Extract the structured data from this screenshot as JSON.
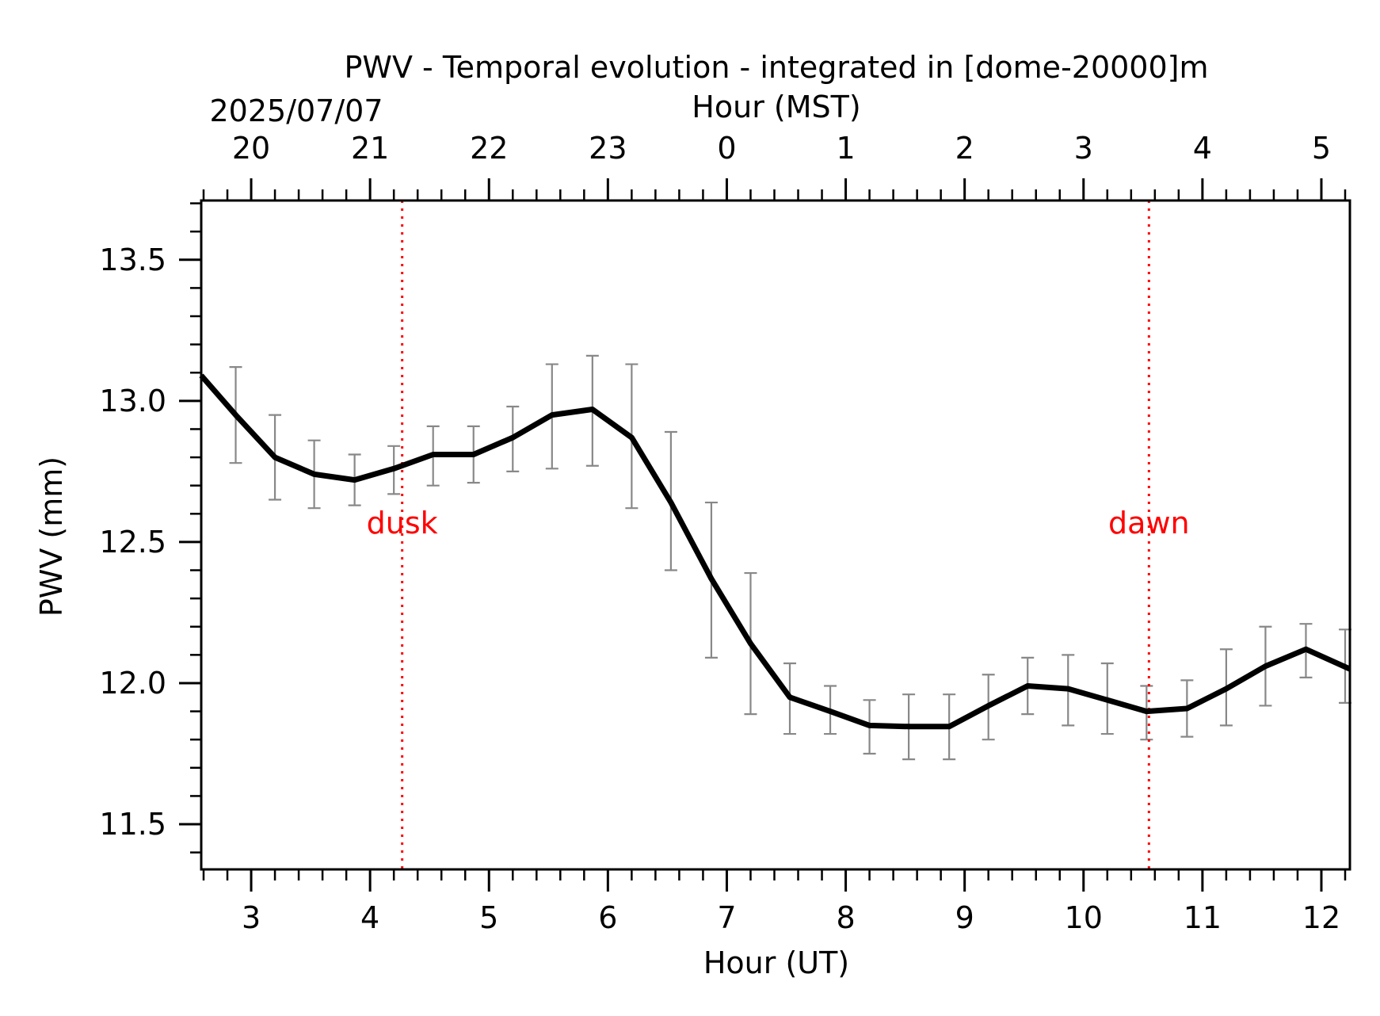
{
  "chart_data": {
    "type": "line",
    "title": "PWV - Temporal evolution - integrated in [dome-20000]m",
    "date_label": "2025/07/07",
    "xlabel": "Hour (UT)",
    "x2label": "Hour (MST)",
    "ylabel": "PWV (mm)",
    "xlim": [
      2.58,
      12.24
    ],
    "ylim": [
      11.34,
      13.71
    ],
    "xticks": [
      3,
      4,
      5,
      6,
      7,
      8,
      9,
      10,
      11,
      12
    ],
    "xtick_labels": [
      "3",
      "4",
      "5",
      "6",
      "7",
      "8",
      "9",
      "10",
      "11",
      "12"
    ],
    "x2ticks": [
      3,
      4,
      5,
      6,
      7,
      8,
      9,
      10,
      11,
      12
    ],
    "x2tick_labels": [
      "20",
      "21",
      "22",
      "23",
      "0",
      "1",
      "2",
      "3",
      "4",
      "5"
    ],
    "yticks": [
      11.5,
      12.0,
      12.5,
      13.0,
      13.5
    ],
    "ytick_labels": [
      "11.5",
      "12.0",
      "12.5",
      "13.0",
      "13.5"
    ],
    "series": [
      {
        "name": "PWV",
        "color": "#000000",
        "x": [
          2.58,
          2.87,
          3.2,
          3.53,
          3.87,
          4.2,
          4.53,
          4.87,
          5.2,
          5.53,
          5.87,
          6.2,
          6.53,
          6.87,
          7.2,
          7.53,
          7.87,
          8.2,
          8.53,
          8.87,
          9.2,
          9.53,
          9.87,
          10.2,
          10.53,
          10.87,
          11.2,
          11.53,
          11.87,
          12.24
        ],
        "y": [
          13.09,
          12.95,
          12.8,
          12.74,
          12.72,
          12.76,
          12.81,
          12.81,
          12.87,
          12.95,
          12.97,
          12.87,
          12.64,
          12.37,
          12.14,
          11.95,
          11.9,
          11.85,
          11.846,
          11.846,
          11.92,
          11.99,
          11.98,
          11.94,
          11.9,
          11.91,
          11.98,
          12.06,
          12.12,
          12.05
        ],
        "error_x": [
          2.87,
          3.2,
          3.53,
          3.87,
          4.2,
          4.53,
          4.87,
          5.2,
          5.53,
          5.87,
          6.2,
          6.53,
          6.87,
          7.2,
          7.53,
          7.87,
          8.2,
          8.53,
          8.87,
          9.2,
          9.53,
          9.87,
          10.2,
          10.53,
          10.87,
          11.2,
          11.53,
          11.87,
          12.2
        ],
        "error_low": [
          12.78,
          12.65,
          12.62,
          12.63,
          12.67,
          12.7,
          12.71,
          12.75,
          12.76,
          12.77,
          12.62,
          12.4,
          12.09,
          11.89,
          11.82,
          11.82,
          11.75,
          11.73,
          11.73,
          11.8,
          11.89,
          11.85,
          11.82,
          11.8,
          11.81,
          11.85,
          11.92,
          12.02,
          11.93
        ],
        "error_high": [
          13.12,
          12.95,
          12.86,
          12.81,
          12.84,
          12.91,
          12.91,
          12.98,
          13.13,
          13.16,
          13.13,
          12.89,
          12.64,
          12.39,
          12.07,
          11.99,
          11.94,
          11.96,
          11.96,
          12.03,
          12.09,
          12.1,
          12.07,
          11.99,
          12.01,
          12.12,
          12.2,
          12.21,
          12.19
        ],
        "error_color": "#888888"
      }
    ],
    "markers": [
      {
        "label": "dusk",
        "x": 4.27,
        "label_y": 12.53,
        "color": "#ff0000"
      },
      {
        "label": "dawn",
        "x": 10.55,
        "label_y": 12.53,
        "color": "#ff0000"
      }
    ]
  }
}
